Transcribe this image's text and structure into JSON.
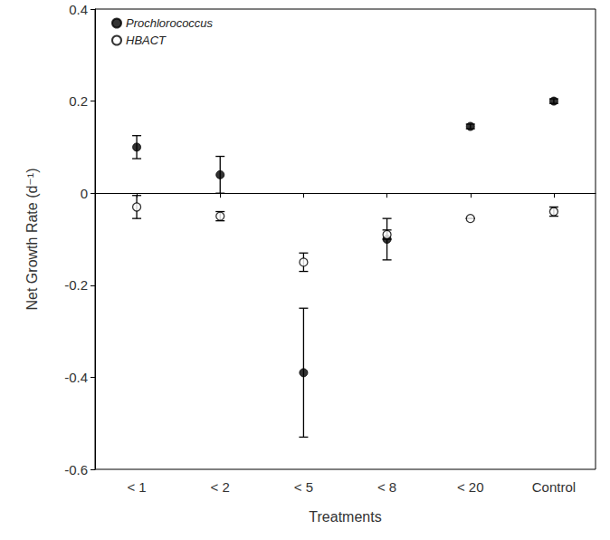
{
  "chart_data": {
    "type": "scatter",
    "y_label": "Net Growth Rate (d⁻¹)",
    "x_label": "Treatments",
    "categories": [
      "< 1",
      "< 2",
      "< 5",
      "< 8",
      "< 20",
      "Control"
    ],
    "series": [
      {
        "name": "Prochlorococcus",
        "color": "#000000",
        "marker": "filled",
        "values": [
          0.1,
          0.04,
          -0.39,
          -0.1,
          0.145,
          0.2
        ],
        "errors": [
          0.025,
          0.04,
          0.14,
          0.045,
          0.005,
          0.005
        ]
      },
      {
        "name": "HBACT",
        "color": "#000000",
        "marker": "open",
        "values": [
          -0.03,
          -0.05,
          -0.15,
          -0.09,
          -0.055,
          -0.04
        ],
        "errors": [
          0.025,
          0.01,
          0.02,
          0.01,
          0.0,
          0.01
        ]
      }
    ],
    "ylim": [
      -0.6,
      0.4
    ],
    "yticks": [
      -0.6,
      -0.4,
      -0.2,
      0,
      0.2,
      0.4
    ],
    "grid": false,
    "legend": "top-left"
  }
}
